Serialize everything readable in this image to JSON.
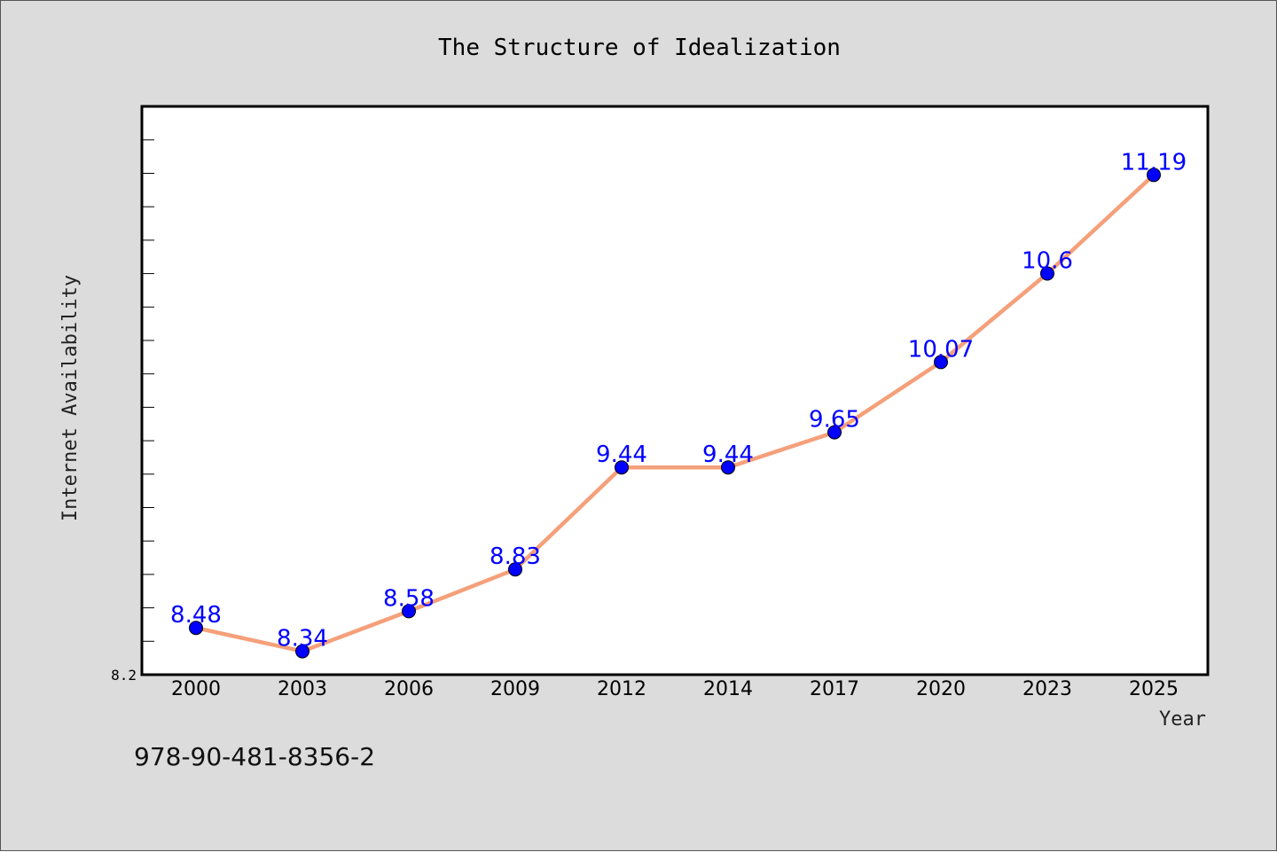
{
  "chart_data": {
    "type": "line",
    "title": "The Structure of Idealization",
    "xlabel": "Year",
    "ylabel": "Internet Availability",
    "categories": [
      "2000",
      "2003",
      "2006",
      "2009",
      "2012",
      "2014",
      "2017",
      "2020",
      "2023",
      "2025"
    ],
    "series": [
      {
        "values": [
          8.48,
          8.34,
          8.58,
          8.83,
          9.44,
          9.44,
          9.65,
          10.07,
          10.6,
          11.19
        ]
      }
    ],
    "data_labels": [
      "8.48",
      "8.34",
      "8.58",
      "8.83",
      "9.44",
      "9.44",
      "9.65",
      "10.07",
      "10.6",
      "11.19"
    ],
    "ylim": [
      8.2,
      11.6
    ],
    "y_min_label": "8.2",
    "grid": false,
    "legend": "none"
  },
  "footer": {
    "isbn": "978-90-481-8356-2"
  },
  "colors": {
    "background": "#dcdcdc",
    "plot_background": "#ffffff",
    "line": "#f5a07a",
    "marker": "#0000ff",
    "data_label": "#0000ff"
  }
}
